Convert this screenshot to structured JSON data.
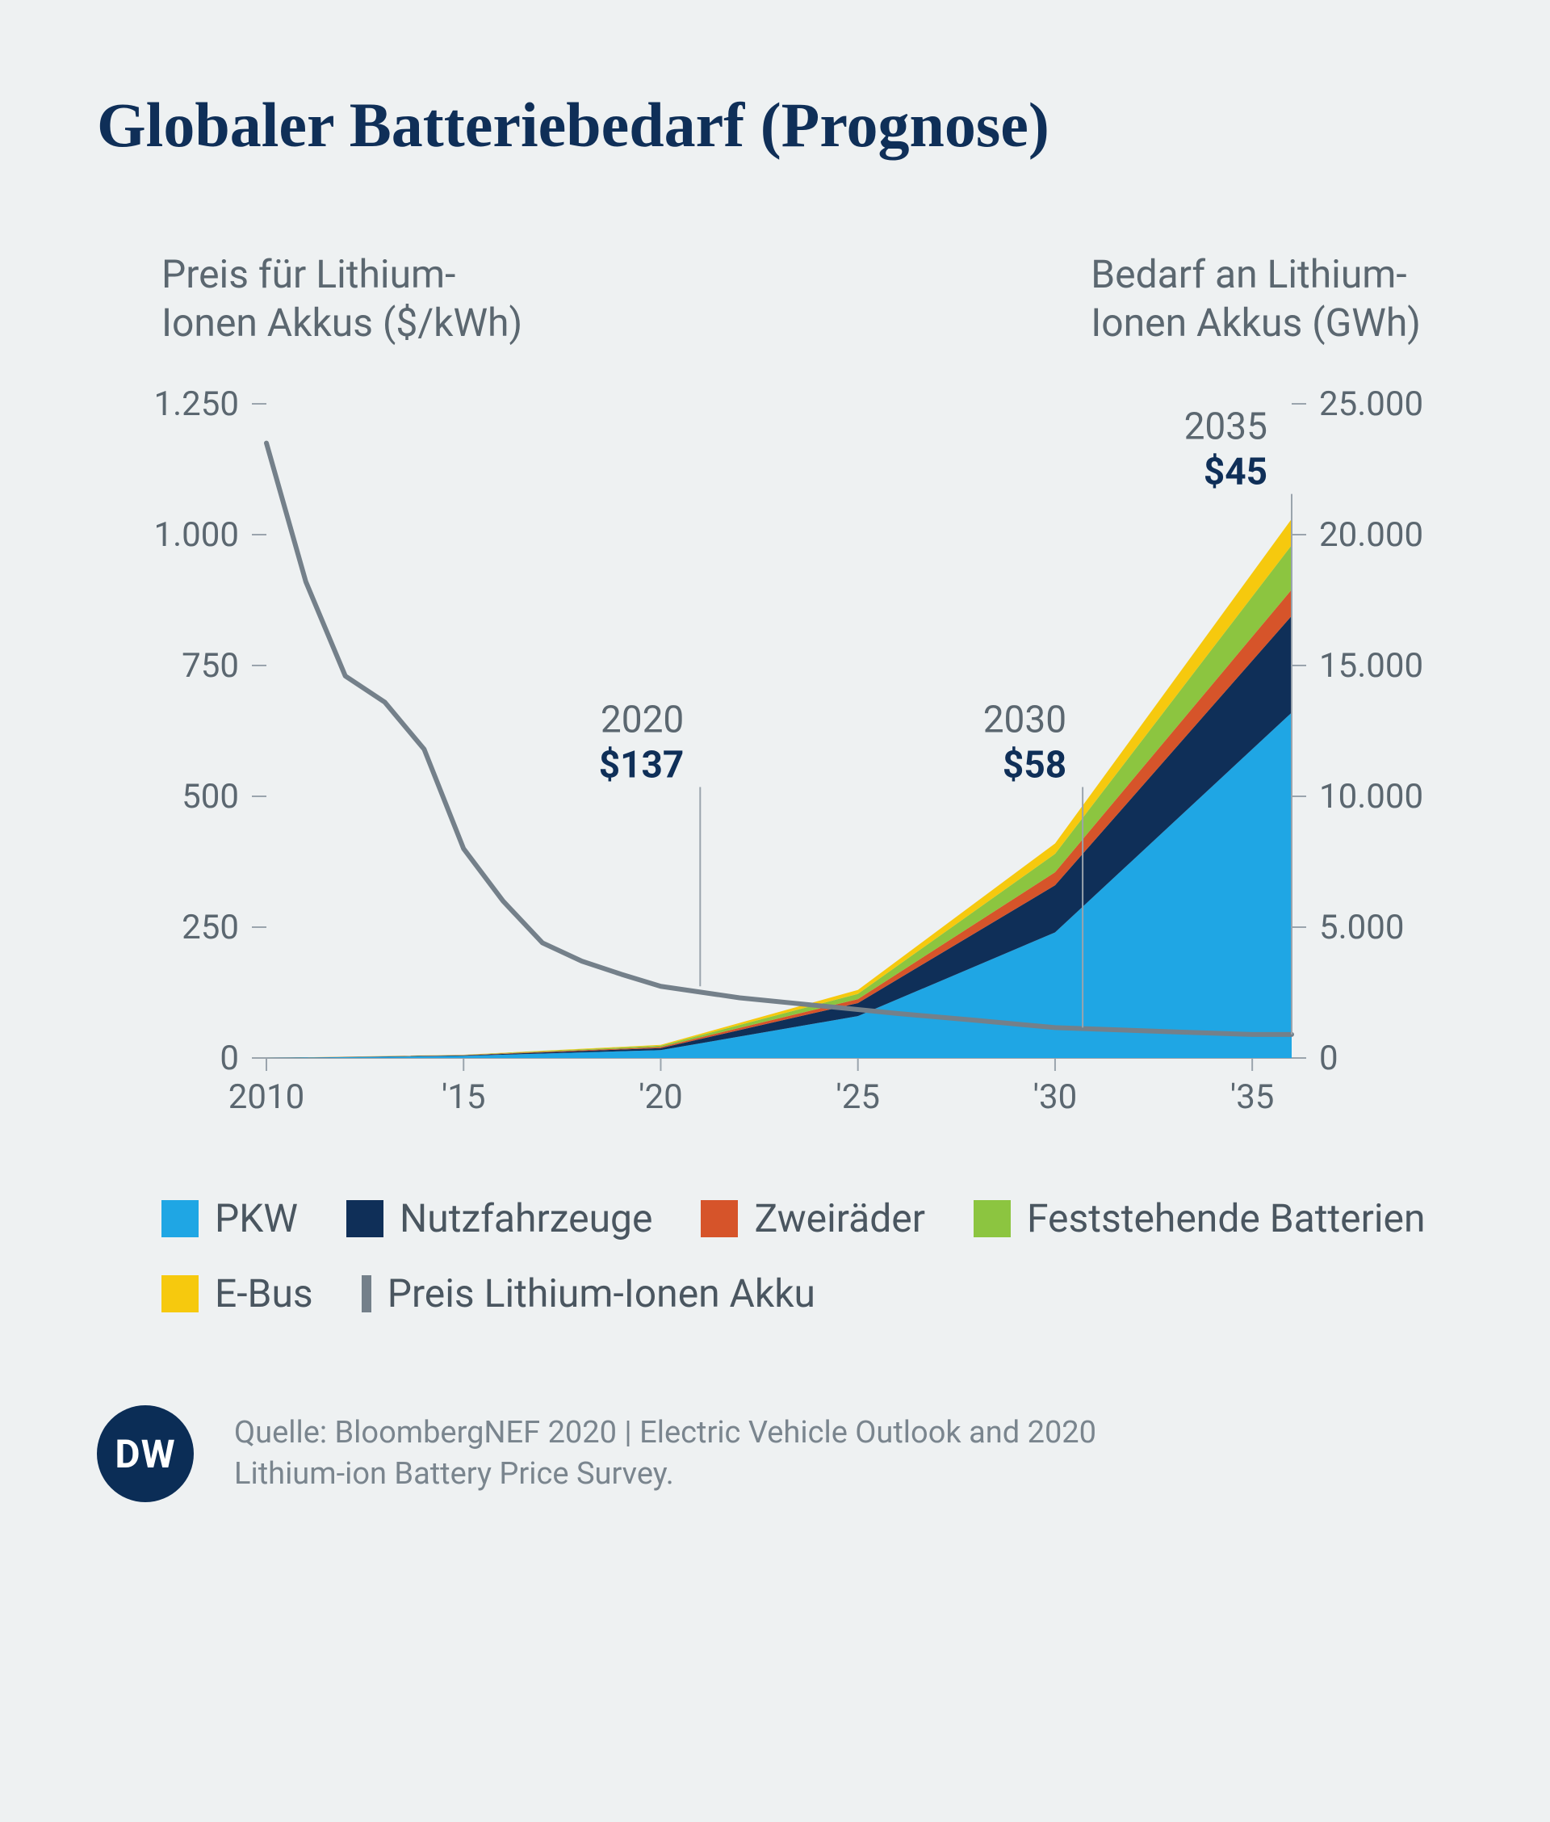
{
  "title": "Globaler Batteriebedarf (Prognose)",
  "y_left_label_l1": "Preis für Lithium-",
  "y_left_label_l2": "Ionen Akkus ($/kWh)",
  "y_right_label_l1": "Bedarf an Lithium-",
  "y_right_label_l2": "Ionen Akkus (GWh)",
  "source_line1": "Quelle: BloombergNEF 2020 | Electric Vehicle Outlook and 2020",
  "source_line2": "Lithium-ion Battery Price Survey.",
  "brand": "DW",
  "chart": {
    "background_color": "#eef1f2",
    "grid_color": "#9aa4ad",
    "axis_text_color": "#5b6770",
    "axis_fontsize": 42,
    "x_years": [
      2010,
      2015,
      2020,
      2025,
      2030,
      2035,
      2036
    ],
    "x_tick_labels": [
      "2010",
      "'15",
      "'20",
      "'25",
      "'30",
      "'35"
    ],
    "x_tick_pos": [
      2010,
      2015,
      2020,
      2025,
      2030,
      2035
    ],
    "y_left_max": 1250,
    "y_left_ticks": [
      0,
      250,
      500,
      750,
      1000,
      1250
    ],
    "y_left_tick_labels": [
      "0",
      "250",
      "500",
      "750",
      "1.000",
      "1.250"
    ],
    "y_right_max": 25000,
    "y_right_ticks": [
      0,
      5000,
      10000,
      15000,
      20000,
      25000
    ],
    "y_right_tick_labels": [
      "0",
      "5.000",
      "10.000",
      "15.000",
      "20.000",
      "25.000"
    ],
    "price_line": {
      "color": "#74808a",
      "width": 6,
      "points": [
        [
          2010,
          1175
        ],
        [
          2011,
          910
        ],
        [
          2012,
          730
        ],
        [
          2013,
          680
        ],
        [
          2014,
          590
        ],
        [
          2015,
          400
        ],
        [
          2016,
          300
        ],
        [
          2017,
          220
        ],
        [
          2018,
          185
        ],
        [
          2019,
          160
        ],
        [
          2020,
          137
        ],
        [
          2022,
          115
        ],
        [
          2024,
          100
        ],
        [
          2026,
          85
        ],
        [
          2028,
          72
        ],
        [
          2030,
          58
        ],
        [
          2033,
          50
        ],
        [
          2035,
          45
        ],
        [
          2036,
          45
        ]
      ]
    },
    "callouts": [
      {
        "year": 2021,
        "top_y": 530,
        "line_bottom_y": 137,
        "year_label": "2020",
        "price_label": "$137"
      },
      {
        "year": 2030.7,
        "top_y": 530,
        "line_bottom_y": 58,
        "year_label": "2030",
        "price_label": "$58"
      },
      {
        "year": 2036,
        "top_y": 1090,
        "line_bottom_y": 45,
        "year_label": "2035",
        "price_label": "$45",
        "label_align": "right",
        "label_offset_x": -30
      }
    ],
    "callout_year_color": "#5b6770",
    "callout_price_color": "#0f2f58",
    "callout_fontsize": 46,
    "stacked": {
      "x": [
        2010,
        2015,
        2020,
        2025,
        2030,
        2036
      ],
      "series": [
        {
          "key": "pkw",
          "label": "PKW",
          "color": "#1fa6e4",
          "vals": [
            0,
            80,
            300,
            1600,
            4800,
            13200
          ]
        },
        {
          "key": "nutz",
          "label": "Nutzfahrzeuge",
          "color": "#0f2f58",
          "vals": [
            0,
            20,
            80,
            500,
            1800,
            3700
          ]
        },
        {
          "key": "zwei",
          "label": "Zweiräder",
          "color": "#d6542a",
          "vals": [
            0,
            10,
            40,
            150,
            500,
            1000
          ]
        },
        {
          "key": "fest",
          "label": "Feststehende Batterien",
          "color": "#8cc540",
          "vals": [
            0,
            10,
            50,
            200,
            700,
            1700
          ]
        },
        {
          "key": "ebus",
          "label": "E-Bus",
          "color": "#f6c90e",
          "vals": [
            0,
            5,
            30,
            150,
            400,
            1000
          ]
        }
      ]
    }
  },
  "legend": [
    {
      "label": "PKW",
      "color": "#1fa6e4",
      "type": "box"
    },
    {
      "label": "Nutzfahrzeuge",
      "color": "#0f2f58",
      "type": "box"
    },
    {
      "label": "Zweiräder",
      "color": "#d6542a",
      "type": "box"
    },
    {
      "label": "Feststehende Batterien",
      "color": "#8cc540",
      "type": "box"
    },
    {
      "label": "E-Bus",
      "color": "#f6c90e",
      "type": "box"
    },
    {
      "label": "Preis Lithium-Ionen Akku",
      "color": "#74808a",
      "type": "line"
    }
  ]
}
